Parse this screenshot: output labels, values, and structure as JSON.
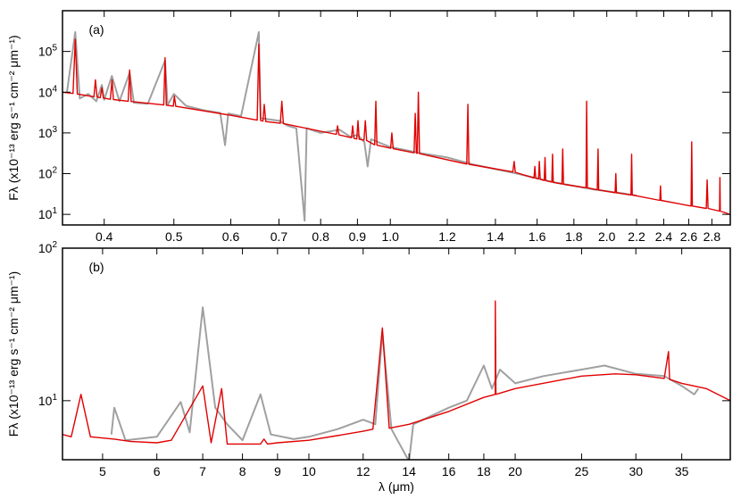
{
  "chart_data": [
    {
      "type": "line",
      "annotation": "(a)",
      "ylabel": "Fλ (x10⁻¹³ erg s⁻¹ cm⁻² μm⁻¹)",
      "log_x": true,
      "log_y": true,
      "xlim": [
        0.35,
        2.97
      ],
      "ylim": [
        5.5,
        1000000
      ],
      "xticks": [
        0.4,
        0.5,
        0.6,
        0.7,
        0.8,
        0.9,
        {
          "value": 1,
          "label": "1.0"
        },
        1.2,
        1.4,
        1.6,
        1.8,
        {
          "value": 2,
          "label": "2.0"
        },
        2.2,
        2.4,
        2.6,
        2.8
      ],
      "yticks": [
        {
          "value": 10,
          "label": "10",
          "exp": "1"
        },
        {
          "value": 100,
          "label": "10",
          "exp": "2"
        },
        {
          "value": 1000,
          "label": "10",
          "exp": "3"
        },
        {
          "value": 10000,
          "label": "10",
          "exp": "4"
        },
        {
          "value": 100000,
          "label": "10",
          "exp": "5"
        }
      ],
      "series": [
        {
          "color": "#a0a0a0",
          "x": [
            0.355,
            0.3646,
            0.37,
            0.38,
            0.39,
            0.397,
            0.4,
            0.41,
            0.42,
            0.434,
            0.44,
            0.46,
            0.4861,
            0.49,
            0.5,
            0.52,
            0.55,
            0.58,
            0.589,
            0.595,
            0.62,
            0.6563,
            0.66,
            0.7,
            0.72,
            0.74,
            0.76,
            0.765,
            0.8,
            0.85,
            0.88,
            0.9,
            0.92,
            0.93,
            0.94,
            0.96,
            1.0,
            1.05,
            1.1,
            1.2,
            1.3,
            1.5,
            1.7,
            1.9,
            2.1,
            2.2
          ],
          "values": [
            10000,
            300000,
            7000,
            9000,
            6000,
            15000,
            6500,
            25000,
            6000,
            30000,
            5500,
            5200,
            60000,
            4800,
            9000,
            4600,
            3600,
            3100,
            500,
            3000,
            2600,
            300000,
            2300,
            2000,
            1500,
            1300,
            7,
            1300,
            1000,
            1200,
            800,
            900,
            600,
            150,
            700,
            600,
            450,
            380,
            320,
            250,
            170,
            100,
            60,
            42,
            33,
            29
          ]
        },
        {
          "color": "#e00000",
          "x": [
            0.35,
            0.362,
            0.3646,
            0.367,
            0.387,
            0.3889,
            0.391,
            0.395,
            0.397,
            0.399,
            0.408,
            0.4102,
            0.412,
            0.432,
            0.434,
            0.436,
            0.484,
            0.4861,
            0.488,
            0.499,
            0.5007,
            0.503,
            0.6,
            0.653,
            0.6563,
            0.66,
            0.665,
            0.6678,
            0.671,
            0.703,
            0.7065,
            0.71,
            0.8,
            0.841,
            0.8446,
            0.848,
            0.883,
            0.8863,
            0.89,
            0.898,
            0.9015,
            0.905,
            0.919,
            0.9229,
            0.927,
            0.951,
            0.9546,
            0.958,
            1.001,
            1.0049,
            1.009,
            1.079,
            1.083,
            1.087,
            1.09,
            1.0938,
            1.098,
            1.277,
            1.2818,
            1.286,
            1.48,
            1.4864,
            1.492,
            1.584,
            1.5885,
            1.593,
            1.607,
            1.6114,
            1.616,
            1.637,
            1.6412,
            1.645,
            1.677,
            1.6811,
            1.685,
            1.732,
            1.7367,
            1.741,
            1.871,
            1.8751,
            1.879,
            1.94,
            1.9446,
            1.949,
            2.054,
            2.0587,
            2.063,
            2.161,
            2.1655,
            2.17,
            2.37,
            2.375,
            2.38,
            2.62,
            2.6252,
            2.63,
            2.75,
            2.758,
            2.766,
            2.87,
            2.873,
            2.876,
            2.97
          ],
          "values": [
            10000,
            9300,
            200000,
            9000,
            7700,
            20000,
            7600,
            7300,
            13000,
            7200,
            6700,
            20000,
            6600,
            6000,
            35000,
            5900,
            4850,
            70000,
            4800,
            4550,
            8000,
            4500,
            2700,
            2060,
            150000,
            2020,
            1950,
            5000,
            1900,
            1720,
            6000,
            1700,
            1100,
            920,
            1500,
            900,
            760,
            1500,
            740,
            710,
            2000,
            700,
            660,
            2000,
            650,
            510,
            6000,
            500,
            420,
            1000,
            410,
            325,
            3000,
            320,
            315,
            10000,
            310,
            172,
            5000,
            170,
            110,
            200,
            108,
            78,
            150,
            77,
            74,
            200,
            73,
            68,
            250,
            67,
            62,
            300,
            61,
            56,
            400,
            55,
            45,
            6000,
            45,
            40,
            400,
            40,
            34,
            100,
            34,
            30,
            300,
            30,
            22,
            50,
            22,
            16,
            600,
            16,
            14,
            70,
            14,
            12,
            80,
            12,
            10
          ]
        }
      ]
    },
    {
      "type": "line",
      "annotation": "(b)",
      "ylabel": "Fλ (x10⁻¹³ erg s⁻¹ cm⁻² μm⁻¹)",
      "xlabel": "λ (μm)",
      "log_x": true,
      "log_y": true,
      "xlim": [
        4.37,
        41.2
      ],
      "ylim": [
        4.1,
        100
      ],
      "xticks": [
        5,
        6,
        7,
        8,
        9,
        10,
        12,
        14,
        16,
        18,
        20,
        25,
        30,
        35
      ],
      "yticks": [
        {
          "value": 10,
          "label": "10",
          "exp": "1"
        },
        {
          "value": 100,
          "label": "10",
          "exp": "2"
        }
      ],
      "series": [
        {
          "color": "#a0a0a0",
          "x": [
            5.15,
            5.2,
            5.4,
            6,
            6.5,
            6.7,
            7,
            7.3,
            7.6,
            8,
            8.5,
            8.8,
            9.5,
            10,
            11,
            12,
            12.5,
            12.8,
            13.2,
            14,
            14.2,
            16,
            17,
            18,
            18.5,
            19,
            20,
            22,
            25,
            27,
            30,
            33,
            35,
            36.5,
            37
          ],
          "values": [
            6,
            9,
            5.5,
            5.8,
            9.8,
            6.2,
            41,
            9,
            7,
            5.5,
            11,
            6,
            5.6,
            5.8,
            6.5,
            7.5,
            7,
            28,
            6.5,
            4,
            7,
            9,
            10,
            17,
            12,
            16,
            13,
            14.5,
            16,
            17,
            15,
            14.5,
            12.5,
            11,
            12
          ]
        },
        {
          "color": "#e00000",
          "x": [
            4.37,
            4.5,
            4.65,
            4.8,
            5.2,
            5.5,
            6,
            6.3,
            7,
            7.2,
            7.46,
            7.6,
            8.5,
            8.6,
            8.7,
            9,
            10,
            11,
            12,
            12.4,
            12.8,
            13.1,
            14,
            16,
            18,
            18.7,
            18.71,
            18.75,
            20,
            25,
            28,
            30,
            33,
            33.48,
            33.6,
            35,
            38,
            41.2
          ],
          "values": [
            6,
            5.8,
            11,
            5.8,
            5.6,
            5.4,
            5.3,
            5.5,
            12.5,
            5.3,
            12,
            5.2,
            5.2,
            5.6,
            5.2,
            5.3,
            5.5,
            5.9,
            6.3,
            6.5,
            30,
            6.6,
            7,
            8.5,
            10.5,
            11,
            45,
            11,
            12,
            14.5,
            15,
            14.8,
            14,
            21,
            13.8,
            13,
            12,
            10
          ]
        }
      ]
    }
  ]
}
